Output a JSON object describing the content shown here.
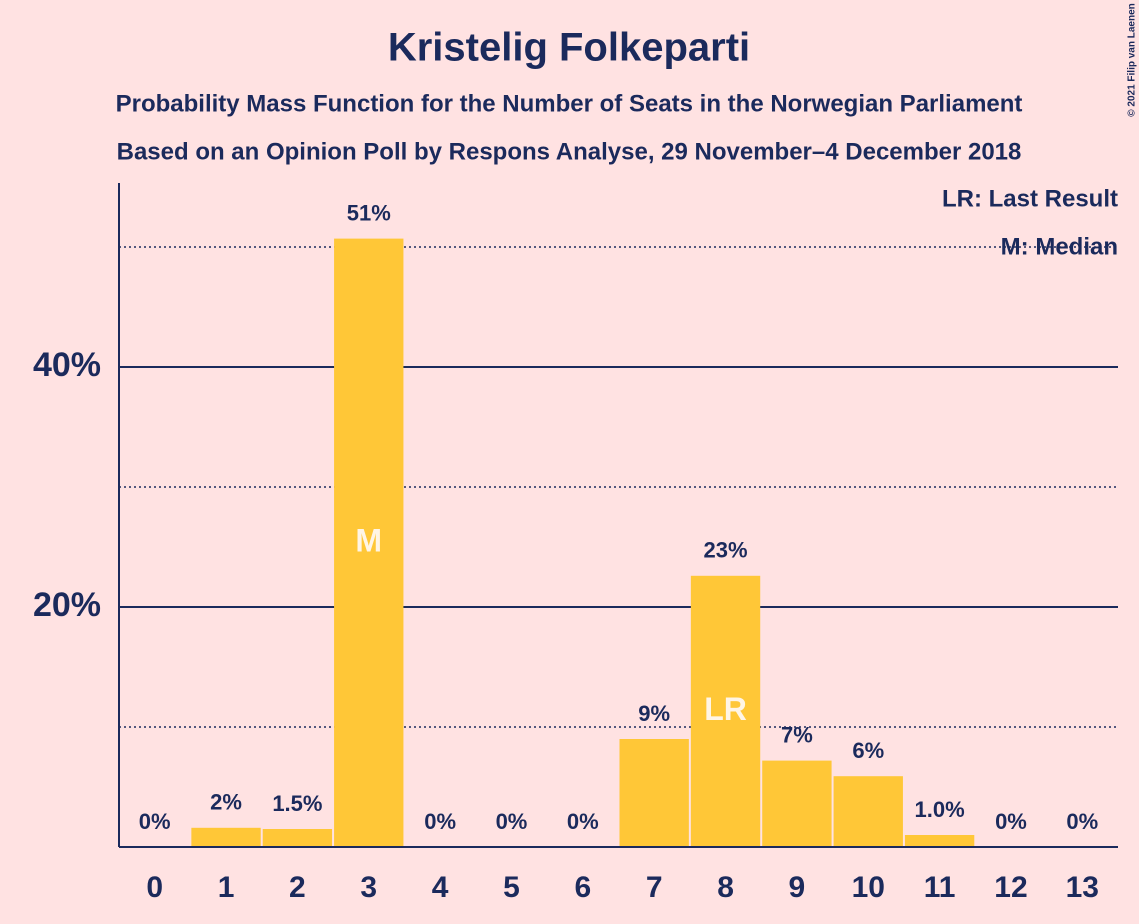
{
  "chart_data": {
    "type": "bar",
    "title": "Kristelig Folkeparti",
    "subtitle": "Probability Mass Function for the Number of Seats in the Norwegian Parliament",
    "subtitle2": "Based on an Opinion Poll by Respons Analyse, 29 November–4 December 2018",
    "categories": [
      0,
      1,
      2,
      3,
      4,
      5,
      6,
      7,
      8,
      9,
      10,
      11,
      12,
      13
    ],
    "values": [
      0,
      1.6,
      1.5,
      50.7,
      0,
      0,
      0,
      9.0,
      22.6,
      7.2,
      5.9,
      1.0,
      0,
      0
    ],
    "value_labels": [
      "0%",
      "2%",
      "1.5%",
      "51%",
      "0%",
      "0%",
      "0%",
      "9%",
      "23%",
      "7%",
      "6%",
      "1.0%",
      "0%",
      "0%"
    ],
    "color": "#ffc737",
    "ylim": [
      0,
      55
    ],
    "yticks": [
      {
        "value": 20,
        "label": "20%"
      },
      {
        "value": 40,
        "label": "40%"
      }
    ],
    "minor_yticks": [
      10,
      30,
      50
    ],
    "grid": true,
    "markers": [
      {
        "x": 3,
        "label": "M"
      },
      {
        "x": 8,
        "label": "LR"
      }
    ],
    "legend": [
      "LR: Last Result",
      "M: Median"
    ],
    "copyright": "© 2021 Filip van Laenen"
  }
}
